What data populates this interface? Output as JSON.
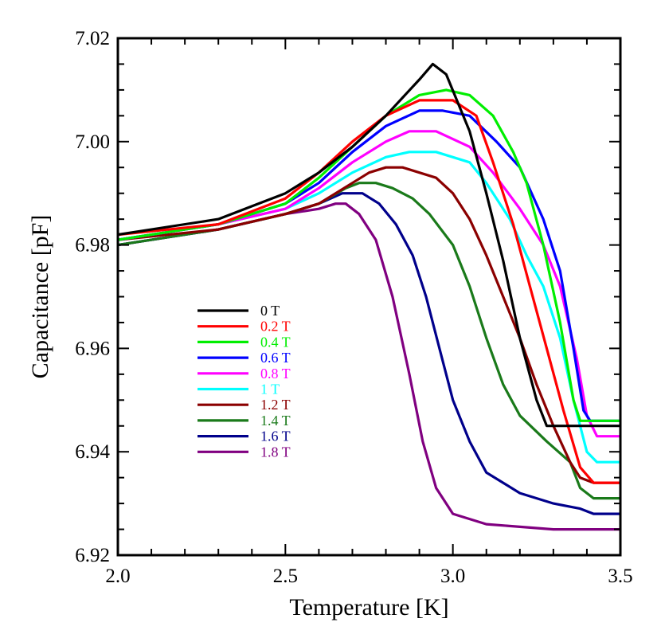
{
  "chart_data": {
    "type": "line",
    "title": "",
    "xlabel": "Temperature [K]",
    "ylabel": "Capacitance [pF]",
    "xlim": [
      2.0,
      3.5
    ],
    "ylim": [
      6.92,
      7.02
    ],
    "x_ticks": [
      "2.0",
      "2.5",
      "3.0",
      "3.5"
    ],
    "y_ticks": [
      "6.92",
      "6.94",
      "6.96",
      "6.98",
      "7.00",
      "7.02"
    ],
    "x_tick_values": [
      2.0,
      2.5,
      3.0,
      3.5
    ],
    "y_tick_values": [
      6.92,
      6.94,
      6.96,
      6.98,
      7.0,
      7.02
    ],
    "grid": false,
    "legend_position": "center-left",
    "series": [
      {
        "name": "0 T",
        "color": "#000000",
        "points": [
          [
            2.0,
            6.982
          ],
          [
            2.3,
            6.985
          ],
          [
            2.5,
            6.99
          ],
          [
            2.6,
            6.994
          ],
          [
            2.7,
            6.999
          ],
          [
            2.8,
            7.005
          ],
          [
            2.9,
            7.012
          ],
          [
            2.94,
            7.015
          ],
          [
            2.98,
            7.013
          ],
          [
            3.05,
            7.002
          ],
          [
            3.1,
            6.99
          ],
          [
            3.15,
            6.977
          ],
          [
            3.2,
            6.962
          ],
          [
            3.25,
            6.95
          ],
          [
            3.28,
            6.945
          ],
          [
            3.5,
            6.945
          ]
        ]
      },
      {
        "name": "0.2 T",
        "color": "#ff0000",
        "points": [
          [
            2.0,
            6.982
          ],
          [
            2.3,
            6.984
          ],
          [
            2.5,
            6.989
          ],
          [
            2.6,
            6.994
          ],
          [
            2.7,
            7.0
          ],
          [
            2.8,
            7.005
          ],
          [
            2.9,
            7.008
          ],
          [
            3.0,
            7.008
          ],
          [
            3.07,
            7.005
          ],
          [
            3.12,
            6.996
          ],
          [
            3.18,
            6.984
          ],
          [
            3.23,
            6.972
          ],
          [
            3.28,
            6.96
          ],
          [
            3.33,
            6.948
          ],
          [
            3.38,
            6.937
          ],
          [
            3.42,
            6.934
          ],
          [
            3.5,
            6.934
          ]
        ]
      },
      {
        "name": "0.4 T",
        "color": "#00ee00",
        "points": [
          [
            2.0,
            6.981
          ],
          [
            2.3,
            6.984
          ],
          [
            2.5,
            6.988
          ],
          [
            2.6,
            6.993
          ],
          [
            2.7,
            6.999
          ],
          [
            2.8,
            7.005
          ],
          [
            2.9,
            7.009
          ],
          [
            2.98,
            7.01
          ],
          [
            3.05,
            7.009
          ],
          [
            3.12,
            7.005
          ],
          [
            3.18,
            6.998
          ],
          [
            3.22,
            6.992
          ],
          [
            3.27,
            6.98
          ],
          [
            3.32,
            6.965
          ],
          [
            3.36,
            6.95
          ],
          [
            3.38,
            6.946
          ],
          [
            3.5,
            6.946
          ]
        ]
      },
      {
        "name": "0.6 T",
        "color": "#0000ff",
        "points": [
          [
            2.0,
            6.981
          ],
          [
            2.3,
            6.984
          ],
          [
            2.5,
            6.988
          ],
          [
            2.6,
            6.992
          ],
          [
            2.7,
            6.998
          ],
          [
            2.8,
            7.003
          ],
          [
            2.9,
            7.006
          ],
          [
            2.97,
            7.006
          ],
          [
            3.05,
            7.005
          ],
          [
            3.13,
            7.0
          ],
          [
            3.2,
            6.995
          ],
          [
            3.27,
            6.985
          ],
          [
            3.32,
            6.975
          ],
          [
            3.36,
            6.96
          ],
          [
            3.39,
            6.948
          ],
          [
            3.41,
            6.946
          ],
          [
            3.5,
            6.946
          ]
        ]
      },
      {
        "name": "0.8 T",
        "color": "#ff00ff",
        "points": [
          [
            2.0,
            6.981
          ],
          [
            2.3,
            6.984
          ],
          [
            2.5,
            6.987
          ],
          [
            2.6,
            6.991
          ],
          [
            2.7,
            6.996
          ],
          [
            2.8,
            7.0
          ],
          [
            2.87,
            7.002
          ],
          [
            2.95,
            7.002
          ],
          [
            3.05,
            6.999
          ],
          [
            3.12,
            6.994
          ],
          [
            3.2,
            6.987
          ],
          [
            3.27,
            6.98
          ],
          [
            3.32,
            6.972
          ],
          [
            3.37,
            6.958
          ],
          [
            3.4,
            6.947
          ],
          [
            3.43,
            6.943
          ],
          [
            3.5,
            6.943
          ]
        ]
      },
      {
        "name": "1 T",
        "color": "#00ffff",
        "points": [
          [
            2.0,
            6.981
          ],
          [
            2.3,
            6.984
          ],
          [
            2.5,
            6.987
          ],
          [
            2.6,
            6.99
          ],
          [
            2.7,
            6.994
          ],
          [
            2.8,
            6.997
          ],
          [
            2.87,
            6.998
          ],
          [
            2.95,
            6.998
          ],
          [
            3.05,
            6.996
          ],
          [
            3.1,
            6.992
          ],
          [
            3.17,
            6.985
          ],
          [
            3.22,
            6.978
          ],
          [
            3.27,
            6.972
          ],
          [
            3.32,
            6.962
          ],
          [
            3.36,
            6.95
          ],
          [
            3.4,
            6.94
          ],
          [
            3.43,
            6.938
          ],
          [
            3.5,
            6.938
          ]
        ]
      },
      {
        "name": "1.2 T",
        "color": "#8b0000",
        "points": [
          [
            2.0,
            6.981
          ],
          [
            2.3,
            6.983
          ],
          [
            2.5,
            6.986
          ],
          [
            2.6,
            6.988
          ],
          [
            2.7,
            6.992
          ],
          [
            2.75,
            6.994
          ],
          [
            2.8,
            6.995
          ],
          [
            2.85,
            6.995
          ],
          [
            2.95,
            6.993
          ],
          [
            3.0,
            6.99
          ],
          [
            3.05,
            6.985
          ],
          [
            3.1,
            6.978
          ],
          [
            3.15,
            6.97
          ],
          [
            3.2,
            6.962
          ],
          [
            3.25,
            6.953
          ],
          [
            3.3,
            6.945
          ],
          [
            3.35,
            6.938
          ],
          [
            3.38,
            6.935
          ],
          [
            3.42,
            6.934
          ],
          [
            3.5,
            6.934
          ]
        ]
      },
      {
        "name": "1.4 T",
        "color": "#1a7a1a",
        "points": [
          [
            2.0,
            6.98
          ],
          [
            2.3,
            6.983
          ],
          [
            2.5,
            6.986
          ],
          [
            2.6,
            6.988
          ],
          [
            2.68,
            6.991
          ],
          [
            2.72,
            6.992
          ],
          [
            2.77,
            6.992
          ],
          [
            2.82,
            6.991
          ],
          [
            2.88,
            6.989
          ],
          [
            2.93,
            6.986
          ],
          [
            3.0,
            6.98
          ],
          [
            3.05,
            6.972
          ],
          [
            3.1,
            6.962
          ],
          [
            3.15,
            6.953
          ],
          [
            3.2,
            6.947
          ],
          [
            3.28,
            6.942
          ],
          [
            3.35,
            6.938
          ],
          [
            3.38,
            6.933
          ],
          [
            3.42,
            6.931
          ],
          [
            3.5,
            6.931
          ]
        ]
      },
      {
        "name": "1.6 T",
        "color": "#00008b",
        "points": [
          [
            2.0,
            6.98
          ],
          [
            2.3,
            6.983
          ],
          [
            2.5,
            6.986
          ],
          [
            2.6,
            6.988
          ],
          [
            2.67,
            6.99
          ],
          [
            2.73,
            6.99
          ],
          [
            2.78,
            6.988
          ],
          [
            2.83,
            6.984
          ],
          [
            2.88,
            6.978
          ],
          [
            2.92,
            6.97
          ],
          [
            2.96,
            6.96
          ],
          [
            3.0,
            6.95
          ],
          [
            3.05,
            6.942
          ],
          [
            3.1,
            6.936
          ],
          [
            3.2,
            6.932
          ],
          [
            3.3,
            6.93
          ],
          [
            3.38,
            6.929
          ],
          [
            3.42,
            6.928
          ],
          [
            3.5,
            6.928
          ]
        ]
      },
      {
        "name": "1.8 T",
        "color": "#800080",
        "points": [
          [
            2.0,
            6.98
          ],
          [
            2.3,
            6.983
          ],
          [
            2.5,
            6.986
          ],
          [
            2.6,
            6.987
          ],
          [
            2.65,
            6.988
          ],
          [
            2.68,
            6.988
          ],
          [
            2.72,
            6.986
          ],
          [
            2.77,
            6.981
          ],
          [
            2.82,
            6.97
          ],
          [
            2.87,
            6.955
          ],
          [
            2.91,
            6.942
          ],
          [
            2.95,
            6.933
          ],
          [
            3.0,
            6.928
          ],
          [
            3.1,
            6.926
          ],
          [
            3.3,
            6.925
          ],
          [
            3.5,
            6.925
          ]
        ]
      }
    ]
  }
}
